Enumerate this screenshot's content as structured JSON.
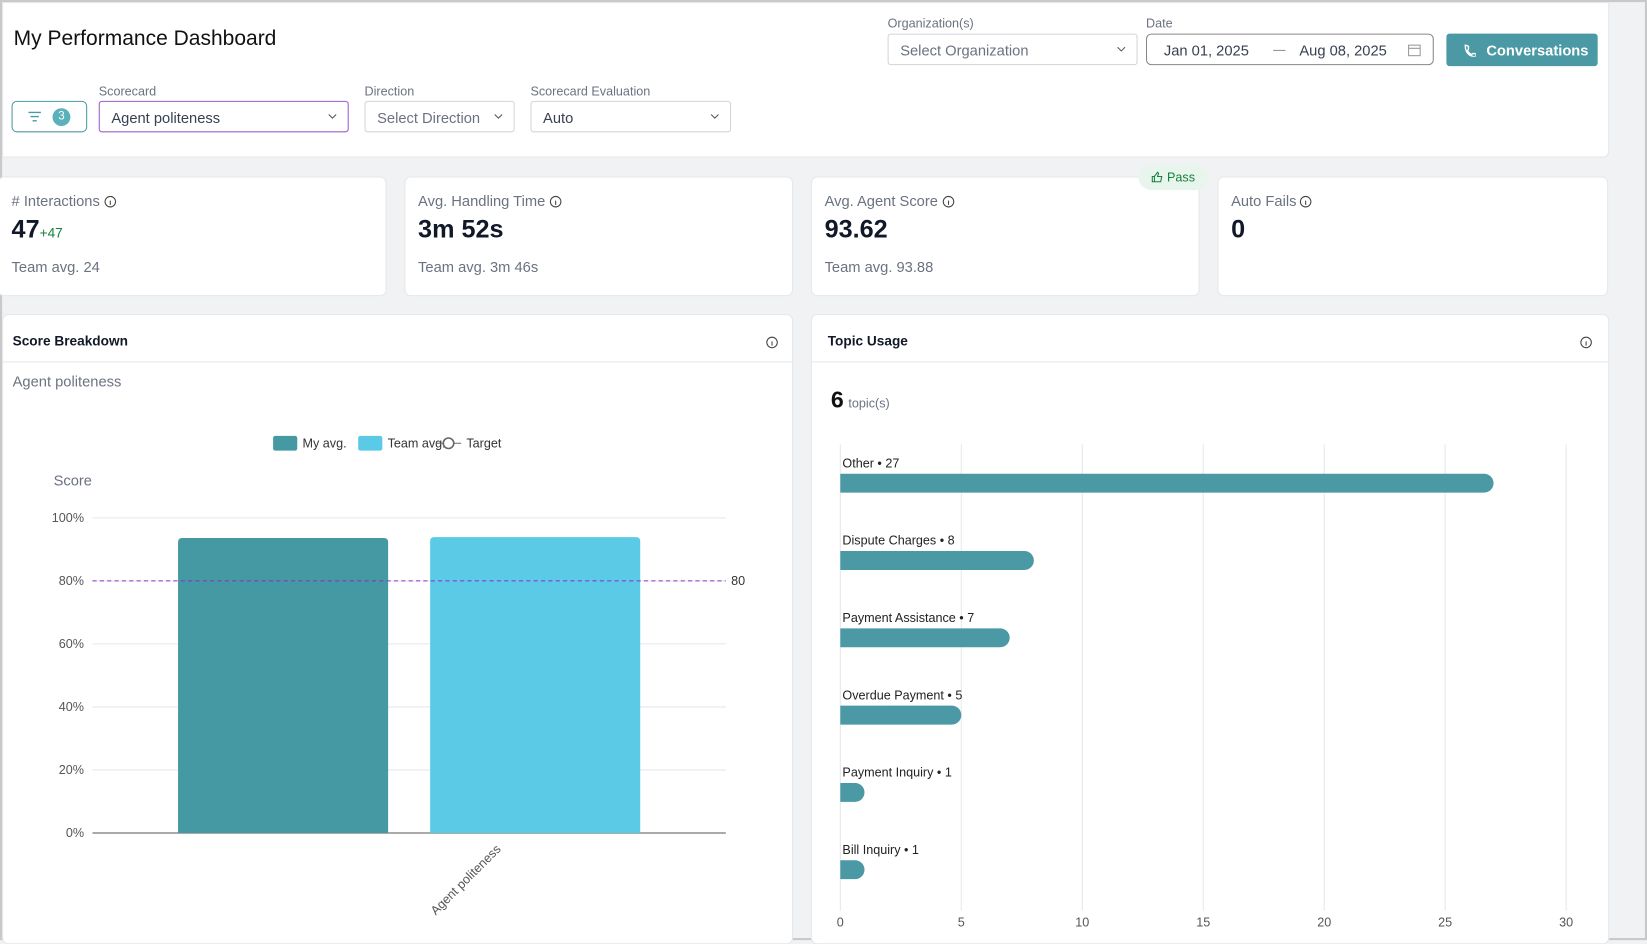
{
  "header": {
    "title": "My Performance Dashboard",
    "organization_label": "Organization(s)",
    "organization_placeholder": "Select Organization",
    "date_label": "Date",
    "date_start": "Jan 01, 2025",
    "date_end": "Aug 08, 2025",
    "conversations_button": "Conversations"
  },
  "filters": {
    "active_count": "3",
    "scorecard_label": "Scorecard",
    "scorecard_value": "Agent politeness",
    "direction_label": "Direction",
    "direction_placeholder": "Select Direction",
    "evaluation_label": "Scorecard Evaluation",
    "evaluation_value": "Auto"
  },
  "kpis": [
    {
      "label": "# Interactions",
      "value": "47",
      "delta": "+47",
      "team": "Team avg. 24"
    },
    {
      "label": "Avg. Handling Time",
      "value": "3m 52s",
      "team": "Team avg. 3m 46s"
    },
    {
      "label": "Avg. Agent Score",
      "value": "93.62",
      "team": "Team avg. 93.88",
      "badge": "Pass"
    },
    {
      "label": "Auto Fails",
      "value": "0"
    }
  ],
  "chart_data": [
    {
      "type": "bar",
      "title": "Score Breakdown",
      "subtitle": "Agent politeness",
      "y_label": "Score",
      "categories": [
        "Agent politeness"
      ],
      "series": [
        {
          "name": "My avg.",
          "color": "#4599a3",
          "values": [
            93.62
          ]
        },
        {
          "name": "Team avg.",
          "color": "#5bcae6",
          "values": [
            93.88
          ]
        }
      ],
      "target": {
        "name": "Target",
        "value": 80,
        "color": "#8b2fc9"
      },
      "ylim": [
        0,
        100
      ],
      "yticks": [
        {
          "value": 0,
          "label": "0%"
        },
        {
          "value": 20,
          "label": "20%"
        },
        {
          "value": 40,
          "label": "40%"
        },
        {
          "value": 60,
          "label": "60%"
        },
        {
          "value": 80,
          "label": "80%"
        },
        {
          "value": 100,
          "label": "100%"
        }
      ],
      "grid": true
    },
    {
      "type": "hbar",
      "title": "Topic Usage",
      "topic_count": 6,
      "topic_count_unit": "topic(s)",
      "values": [
        27,
        8,
        7,
        5,
        1,
        1
      ],
      "value_labels": [
        "Other • 27",
        "Dispute Charges • 8",
        "Payment Assistance • 7",
        "Overdue Payment • 5",
        "Payment Inquiry • 1",
        "Bill Inquiry • 1"
      ],
      "color": "#4a99a4",
      "xlim": [
        0,
        30
      ],
      "xticks": [
        0,
        5,
        10,
        15,
        20,
        25,
        30
      ],
      "grid": true
    }
  ]
}
